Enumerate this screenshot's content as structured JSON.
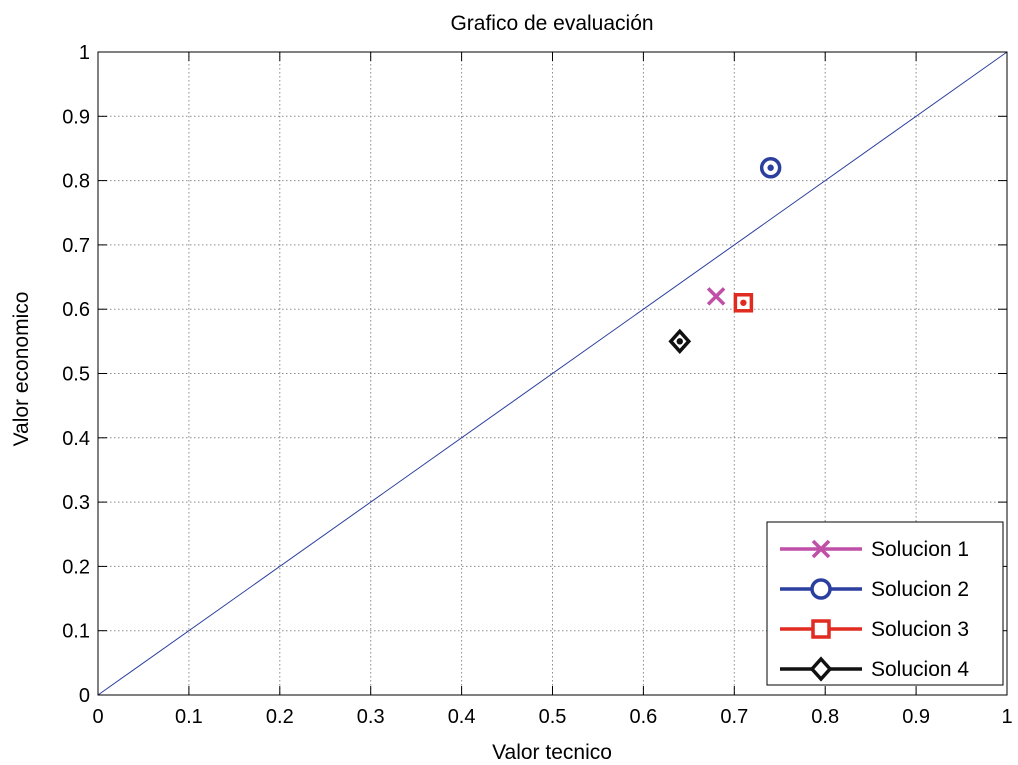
{
  "chart_data": {
    "type": "scatter",
    "title": "Grafico de evaluación",
    "xlabel": "Valor tecnico",
    "ylabel": "Valor economico",
    "xlim": [
      0,
      1
    ],
    "ylim": [
      0,
      1
    ],
    "xticks": [
      "0",
      "0.1",
      "0.2",
      "0.3",
      "0.4",
      "0.5",
      "0.6",
      "0.7",
      "0.8",
      "0.9",
      "1"
    ],
    "yticks": [
      "0",
      "0.1",
      "0.2",
      "0.3",
      "0.4",
      "0.5",
      "0.6",
      "0.7",
      "0.8",
      "0.9",
      "1"
    ],
    "grid": true,
    "legend_position": "bottom-right",
    "reference_line": {
      "x": [
        0,
        1
      ],
      "y": [
        0,
        1
      ],
      "color": "#2b3f9e"
    },
    "series": [
      {
        "name": "Solucion 1",
        "marker": "x",
        "color": "#c04fa8",
        "x": [
          0.68
        ],
        "y": [
          0.62
        ]
      },
      {
        "name": "Solucion 2",
        "marker": "circle",
        "color": "#2b3f9e",
        "x": [
          0.74
        ],
        "y": [
          0.82
        ]
      },
      {
        "name": "Solucion 3",
        "marker": "square",
        "color": "#e02b20",
        "x": [
          0.71
        ],
        "y": [
          0.61
        ]
      },
      {
        "name": "Solucion 4",
        "marker": "diamond",
        "color": "#111111",
        "x": [
          0.64
        ],
        "y": [
          0.55
        ]
      }
    ]
  }
}
